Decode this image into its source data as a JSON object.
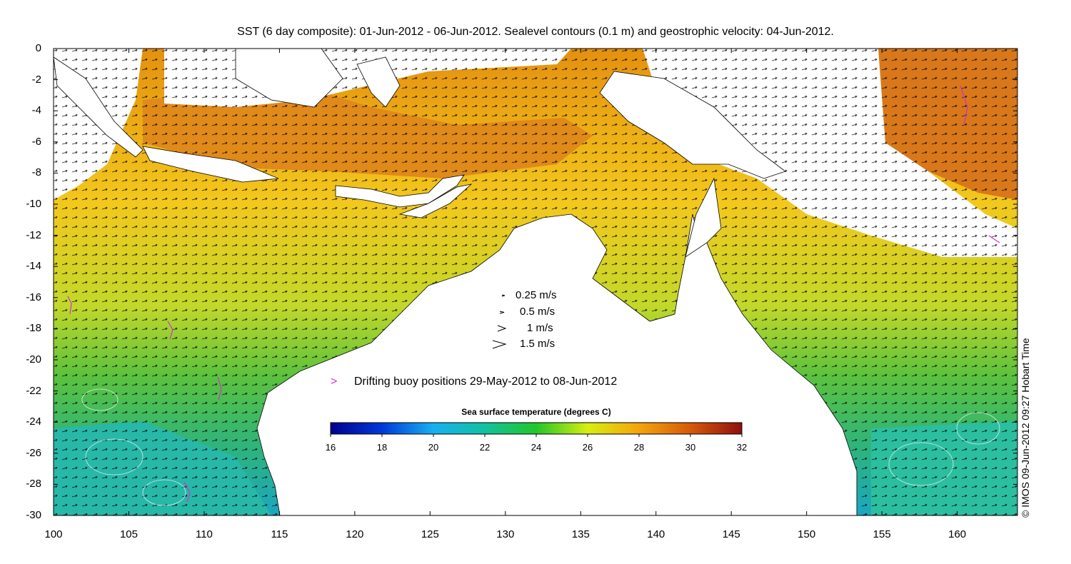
{
  "title": "SST (6 day composite): 01-Jun-2012 - 06-Jun-2012. Sealevel contours (0.1 m) and geostrophic velocity: 04-Jun-2012.",
  "stamp": "© IMOS 09-Jun-2012 09:27 Hobart Time",
  "map": {
    "lon_range": [
      100,
      164
    ],
    "lat_range": [
      -30,
      0
    ],
    "y_ticks": [
      "0",
      "-2",
      "-4",
      "-6",
      "-8",
      "-10",
      "-12",
      "-14",
      "-16",
      "-18",
      "-20",
      "-22",
      "-24",
      "-26",
      "-28",
      "-30"
    ],
    "x_ticks": [
      "100",
      "105",
      "110",
      "115",
      "120",
      "125",
      "130",
      "135",
      "140",
      "145",
      "150",
      "155",
      "160"
    ],
    "land_color": "#ffffff",
    "arrow_color": "#000000",
    "contour_color": "#ffffff"
  },
  "velocity_legend": [
    "0.25 m/s",
    "0.5 m/s",
    "1 m/s",
    "1.5 m/s"
  ],
  "buoy": {
    "marker": ">",
    "label": "Drifting buoy positions 29-May-2012 to 08-Jun-2012",
    "color": "#d02fd0"
  },
  "colorbar": {
    "title": "Sea surface temperature (degrees C)",
    "ticks": [
      "16",
      "18",
      "20",
      "22",
      "24",
      "26",
      "28",
      "30",
      "32"
    ],
    "range": [
      16,
      32
    ]
  }
}
